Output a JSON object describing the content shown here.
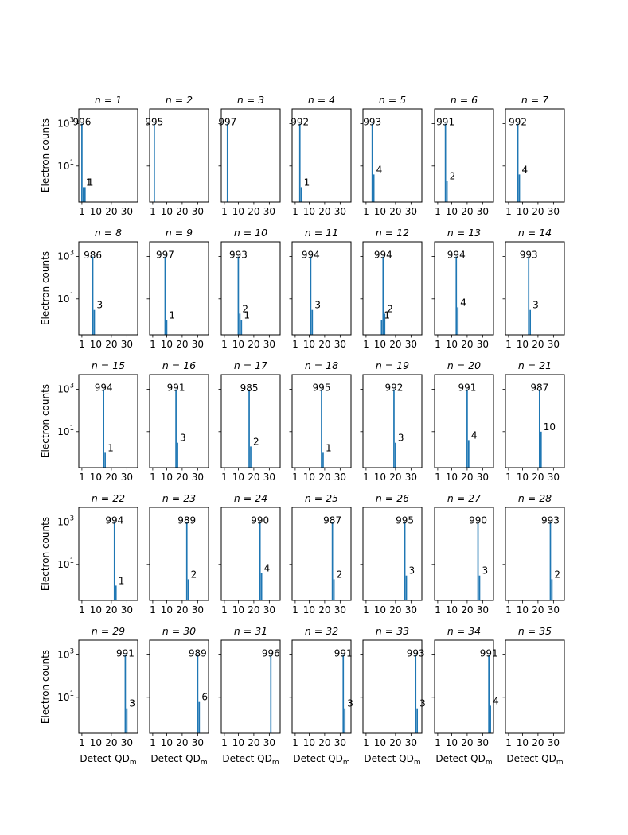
{
  "figure": {
    "ylabel": "Electron counts",
    "xlabel_main": "Detect QD",
    "xlabel_sub": "m",
    "panel_title_prefix": "n = "
  },
  "colors": {
    "bar": "#1f77b4",
    "axis": "#000000",
    "background": "#ffffff"
  },
  "chart_data": {
    "type": "bar",
    "subtype": "small-multiples histogram grid (7 columns x 5 rows)",
    "yscale": "log",
    "xticks": [
      1,
      10,
      20,
      30
    ],
    "xtick_labels": [
      "1",
      "10",
      "20",
      "30"
    ],
    "xlim": [
      -1,
      37
    ],
    "ylim": [
      0.2,
      5000
    ],
    "yticks": [
      10,
      1000
    ],
    "ytick_labels": [
      [
        "10",
        "1"
      ],
      [
        "10",
        "3"
      ]
    ],
    "xlabel": "Detect QD_m",
    "ylabel": "Electron counts",
    "panels": [
      {
        "n": 1,
        "title": "n = 1",
        "bars": [
          {
            "x": 1,
            "value": 996,
            "label": "996"
          },
          {
            "x": 2,
            "value": 1,
            "label": "1"
          },
          {
            "x": 3,
            "value": 1,
            "label": "1"
          }
        ]
      },
      {
        "n": 2,
        "title": "n = 2",
        "bars": [
          {
            "x": 2,
            "value": 995,
            "label": "995"
          }
        ]
      },
      {
        "n": 3,
        "title": "n = 3",
        "bars": [
          {
            "x": 3,
            "value": 997,
            "label": "997"
          }
        ]
      },
      {
        "n": 4,
        "title": "n = 4",
        "bars": [
          {
            "x": 4,
            "value": 992,
            "label": "992"
          },
          {
            "x": 5,
            "value": 1,
            "label": "1"
          }
        ]
      },
      {
        "n": 5,
        "title": "n = 5",
        "bars": [
          {
            "x": 5,
            "value": 993,
            "label": "993"
          },
          {
            "x": 6,
            "value": 4,
            "label": "4"
          }
        ]
      },
      {
        "n": 6,
        "title": "n = 6",
        "bars": [
          {
            "x": 6,
            "value": 991,
            "label": "991"
          },
          {
            "x": 7,
            "value": 2,
            "label": "2"
          }
        ]
      },
      {
        "n": 7,
        "title": "n = 7",
        "bars": [
          {
            "x": 7,
            "value": 992,
            "label": "992"
          },
          {
            "x": 8,
            "value": 4,
            "label": "4"
          }
        ]
      },
      {
        "n": 8,
        "title": "n = 8",
        "bars": [
          {
            "x": 8,
            "value": 986,
            "label": "986"
          },
          {
            "x": 9,
            "value": 3,
            "label": "3"
          }
        ]
      },
      {
        "n": 9,
        "title": "n = 9",
        "bars": [
          {
            "x": 9,
            "value": 997,
            "label": "997"
          },
          {
            "x": 10,
            "value": 1,
            "label": "1"
          }
        ]
      },
      {
        "n": 10,
        "title": "n = 10",
        "bars": [
          {
            "x": 10,
            "value": 993,
            "label": "993"
          },
          {
            "x": 11,
            "value": 2,
            "label": "2"
          },
          {
            "x": 12,
            "value": 1,
            "label": "1"
          }
        ]
      },
      {
        "n": 11,
        "title": "n = 11",
        "bars": [
          {
            "x": 11,
            "value": 994,
            "label": "994"
          },
          {
            "x": 12,
            "value": 3,
            "label": "3"
          }
        ]
      },
      {
        "n": 12,
        "title": "n = 12",
        "bars": [
          {
            "x": 11,
            "value": 1,
            "label": "1"
          },
          {
            "x": 12,
            "value": 994,
            "label": "994"
          },
          {
            "x": 13,
            "value": 2,
            "label": "2"
          }
        ]
      },
      {
        "n": 13,
        "title": "n = 13",
        "bars": [
          {
            "x": 13,
            "value": 994,
            "label": "994"
          },
          {
            "x": 14,
            "value": 4,
            "label": "4"
          }
        ]
      },
      {
        "n": 14,
        "title": "n = 14",
        "bars": [
          {
            "x": 14,
            "value": 993,
            "label": "993"
          },
          {
            "x": 15,
            "value": 3,
            "label": "3"
          }
        ]
      },
      {
        "n": 15,
        "title": "n = 15",
        "bars": [
          {
            "x": 15,
            "value": 994,
            "label": "994"
          },
          {
            "x": 16,
            "value": 1,
            "label": "1"
          }
        ]
      },
      {
        "n": 16,
        "title": "n = 16",
        "bars": [
          {
            "x": 16,
            "value": 991,
            "label": "991"
          },
          {
            "x": 17,
            "value": 3,
            "label": "3"
          }
        ]
      },
      {
        "n": 17,
        "title": "n = 17",
        "bars": [
          {
            "x": 17,
            "value": 985,
            "label": "985"
          },
          {
            "x": 18,
            "value": 2,
            "label": "2"
          }
        ]
      },
      {
        "n": 18,
        "title": "n = 18",
        "bars": [
          {
            "x": 18,
            "value": 995,
            "label": "995"
          },
          {
            "x": 19,
            "value": 1,
            "label": "1"
          }
        ]
      },
      {
        "n": 19,
        "title": "n = 19",
        "bars": [
          {
            "x": 19,
            "value": 992,
            "label": "992"
          },
          {
            "x": 20,
            "value": 3,
            "label": "3"
          }
        ]
      },
      {
        "n": 20,
        "title": "n = 20",
        "bars": [
          {
            "x": 20,
            "value": 991,
            "label": "991"
          },
          {
            "x": 21,
            "value": 4,
            "label": "4"
          }
        ]
      },
      {
        "n": 21,
        "title": "n = 21",
        "bars": [
          {
            "x": 21,
            "value": 987,
            "label": "987"
          },
          {
            "x": 22,
            "value": 10,
            "label": "10"
          }
        ]
      },
      {
        "n": 22,
        "title": "n = 22",
        "bars": [
          {
            "x": 22,
            "value": 994,
            "label": "994"
          },
          {
            "x": 23,
            "value": 1,
            "label": "1"
          }
        ]
      },
      {
        "n": 23,
        "title": "n = 23",
        "bars": [
          {
            "x": 23,
            "value": 989,
            "label": "989"
          },
          {
            "x": 24,
            "value": 2,
            "label": "2"
          }
        ]
      },
      {
        "n": 24,
        "title": "n = 24",
        "bars": [
          {
            "x": 24,
            "value": 990,
            "label": "990"
          },
          {
            "x": 25,
            "value": 4,
            "label": "4"
          }
        ]
      },
      {
        "n": 25,
        "title": "n = 25",
        "bars": [
          {
            "x": 25,
            "value": 987,
            "label": "987"
          },
          {
            "x": 26,
            "value": 2,
            "label": "2"
          }
        ]
      },
      {
        "n": 26,
        "title": "n = 26",
        "bars": [
          {
            "x": 26,
            "value": 995,
            "label": "995"
          },
          {
            "x": 27,
            "value": 3,
            "label": "3"
          }
        ]
      },
      {
        "n": 27,
        "title": "n = 27",
        "bars": [
          {
            "x": 27,
            "value": 990,
            "label": "990"
          },
          {
            "x": 28,
            "value": 3,
            "label": "3"
          }
        ]
      },
      {
        "n": 28,
        "title": "n = 28",
        "bars": [
          {
            "x": 28,
            "value": 993,
            "label": "993"
          },
          {
            "x": 29,
            "value": 2,
            "label": "2"
          }
        ]
      },
      {
        "n": 29,
        "title": "n = 29",
        "bars": [
          {
            "x": 29,
            "value": 991,
            "label": "991"
          },
          {
            "x": 30,
            "value": 3,
            "label": "3"
          }
        ]
      },
      {
        "n": 30,
        "title": "n = 30",
        "bars": [
          {
            "x": 30,
            "value": 989,
            "label": "989"
          },
          {
            "x": 31,
            "value": 6,
            "label": "6"
          }
        ]
      },
      {
        "n": 31,
        "title": "n = 31",
        "bars": [
          {
            "x": 31,
            "value": 996,
            "label": "996"
          }
        ]
      },
      {
        "n": 32,
        "title": "n = 32",
        "bars": [
          {
            "x": 32,
            "value": 991,
            "label": "991"
          },
          {
            "x": 33,
            "value": 3,
            "label": "3"
          }
        ]
      },
      {
        "n": 33,
        "title": "n = 33",
        "bars": [
          {
            "x": 33,
            "value": 993,
            "label": "993"
          },
          {
            "x": 34,
            "value": 3,
            "label": "3"
          }
        ]
      },
      {
        "n": 34,
        "title": "n = 34",
        "bars": [
          {
            "x": 34,
            "value": 991,
            "label": "991"
          },
          {
            "x": 35,
            "value": 4,
            "label": "4"
          }
        ]
      },
      {
        "n": 35,
        "title": "n = 35",
        "bars": []
      }
    ]
  }
}
